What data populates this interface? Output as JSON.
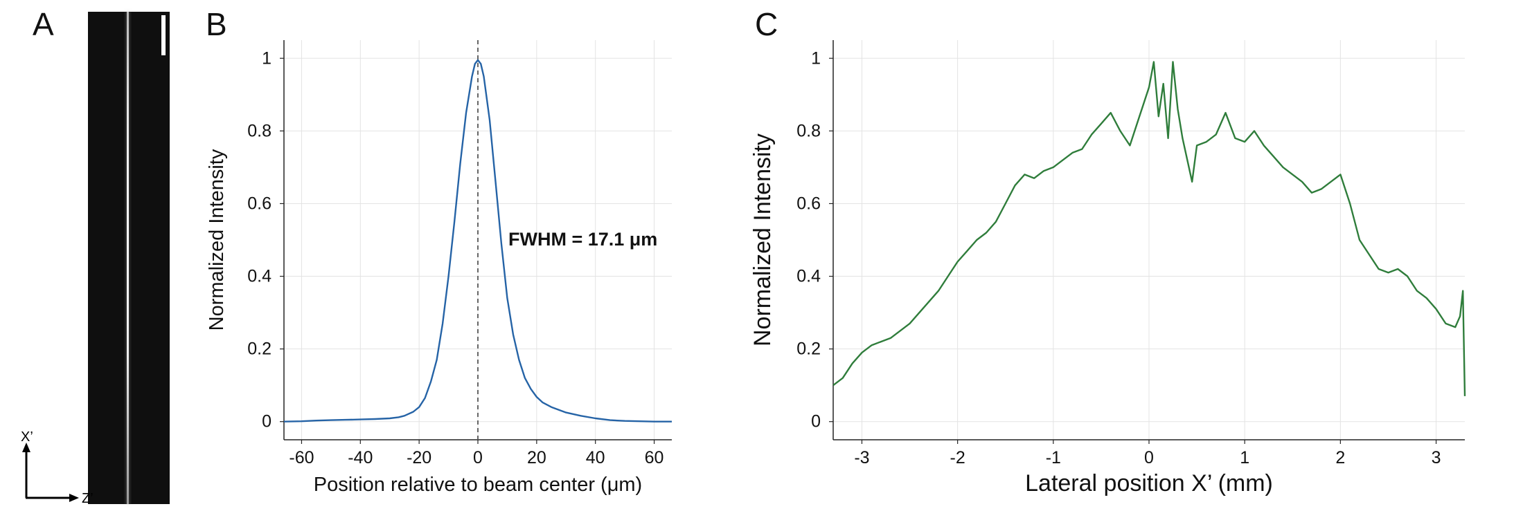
{
  "panels": {
    "a": {
      "letter": "A",
      "axis_vertical": "X’",
      "axis_horizontal": "Z’"
    },
    "b": {
      "letter": "B"
    },
    "c": {
      "letter": "C"
    }
  },
  "colors": {
    "panel_b_line": "#2563a6",
    "panel_c_line": "#2f7d3b",
    "grid": "#e3e3e3",
    "axis": "#222222",
    "center_marker": "#555555",
    "image_background": "#0f0f0f"
  },
  "chart_data": [
    {
      "type": "line",
      "title": "",
      "xlabel": "Position relative to beam center (μm)",
      "ylabel": "Normalized Intensity",
      "xlim": [
        -66,
        66
      ],
      "ylim": [
        -0.05,
        1.05
      ],
      "xticks": [
        -60,
        -40,
        -20,
        0,
        20,
        40,
        60
      ],
      "yticks": [
        0,
        0.2,
        0.4,
        0.6,
        0.8,
        1
      ],
      "ytick_labels": [
        "0",
        "0.2",
        "0.4",
        "0.6",
        "0.8",
        "1"
      ],
      "grid": true,
      "vertical_marker": {
        "x": 0,
        "style": "dashed"
      },
      "annotation": "FWHM = 17.1 μm",
      "series": [
        {
          "x": [
            -66,
            -60,
            -55,
            -50,
            -45,
            -40,
            -35,
            -30,
            -27,
            -25,
            -22,
            -20,
            -18,
            -16,
            -14,
            -12,
            -10,
            -8,
            -6,
            -4,
            -2,
            -1,
            0,
            1,
            2,
            4,
            6,
            8,
            10,
            12,
            14,
            16,
            18,
            20,
            22,
            25,
            30,
            35,
            40,
            45,
            50,
            55,
            60,
            66
          ],
          "y": [
            0.0,
            0.001,
            0.003,
            0.004,
            0.005,
            0.006,
            0.007,
            0.009,
            0.012,
            0.016,
            0.027,
            0.04,
            0.065,
            0.11,
            0.17,
            0.27,
            0.4,
            0.55,
            0.71,
            0.85,
            0.95,
            0.985,
            0.995,
            0.985,
            0.95,
            0.83,
            0.66,
            0.49,
            0.34,
            0.24,
            0.17,
            0.12,
            0.09,
            0.068,
            0.053,
            0.04,
            0.025,
            0.016,
            0.009,
            0.004,
            0.002,
            0.001,
            0.0,
            0.0
          ]
        }
      ]
    },
    {
      "type": "line",
      "title": "",
      "xlabel": "Lateral position X’ (mm)",
      "ylabel": "Normalized Intensity",
      "xlim": [
        -3.3,
        3.3
      ],
      "ylim": [
        -0.05,
        1.05
      ],
      "xticks": [
        -3,
        -2,
        -1,
        0,
        1,
        2,
        3
      ],
      "yticks": [
        0,
        0.2,
        0.4,
        0.6,
        0.8,
        1
      ],
      "ytick_labels": [
        "0",
        "0.2",
        "0.4",
        "0.6",
        "0.8",
        "1"
      ],
      "grid": true,
      "series": [
        {
          "x": [
            -3.3,
            -3.2,
            -3.1,
            -3.0,
            -2.9,
            -2.8,
            -2.7,
            -2.6,
            -2.5,
            -2.4,
            -2.3,
            -2.2,
            -2.1,
            -2.0,
            -1.9,
            -1.8,
            -1.7,
            -1.6,
            -1.5,
            -1.4,
            -1.3,
            -1.2,
            -1.1,
            -1.0,
            -0.9,
            -0.8,
            -0.7,
            -0.6,
            -0.5,
            -0.4,
            -0.3,
            -0.2,
            -0.1,
            0.0,
            0.05,
            0.1,
            0.15,
            0.2,
            0.25,
            0.3,
            0.35,
            0.4,
            0.45,
            0.5,
            0.6,
            0.7,
            0.8,
            0.9,
            1.0,
            1.1,
            1.2,
            1.3,
            1.4,
            1.5,
            1.6,
            1.7,
            1.8,
            1.9,
            2.0,
            2.1,
            2.2,
            2.3,
            2.4,
            2.5,
            2.6,
            2.7,
            2.8,
            2.9,
            3.0,
            3.1,
            3.2,
            3.25,
            3.28,
            3.3
          ],
          "y": [
            0.1,
            0.12,
            0.16,
            0.19,
            0.21,
            0.22,
            0.23,
            0.25,
            0.27,
            0.3,
            0.33,
            0.36,
            0.4,
            0.44,
            0.47,
            0.5,
            0.52,
            0.55,
            0.6,
            0.65,
            0.68,
            0.67,
            0.69,
            0.7,
            0.72,
            0.74,
            0.75,
            0.79,
            0.82,
            0.85,
            0.8,
            0.76,
            0.84,
            0.92,
            0.99,
            0.84,
            0.93,
            0.78,
            0.99,
            0.86,
            0.78,
            0.72,
            0.66,
            0.76,
            0.77,
            0.79,
            0.85,
            0.78,
            0.77,
            0.8,
            0.76,
            0.73,
            0.7,
            0.68,
            0.66,
            0.63,
            0.64,
            0.66,
            0.68,
            0.6,
            0.5,
            0.46,
            0.42,
            0.41,
            0.42,
            0.4,
            0.36,
            0.34,
            0.31,
            0.27,
            0.26,
            0.29,
            0.36,
            0.07
          ]
        }
      ]
    }
  ]
}
